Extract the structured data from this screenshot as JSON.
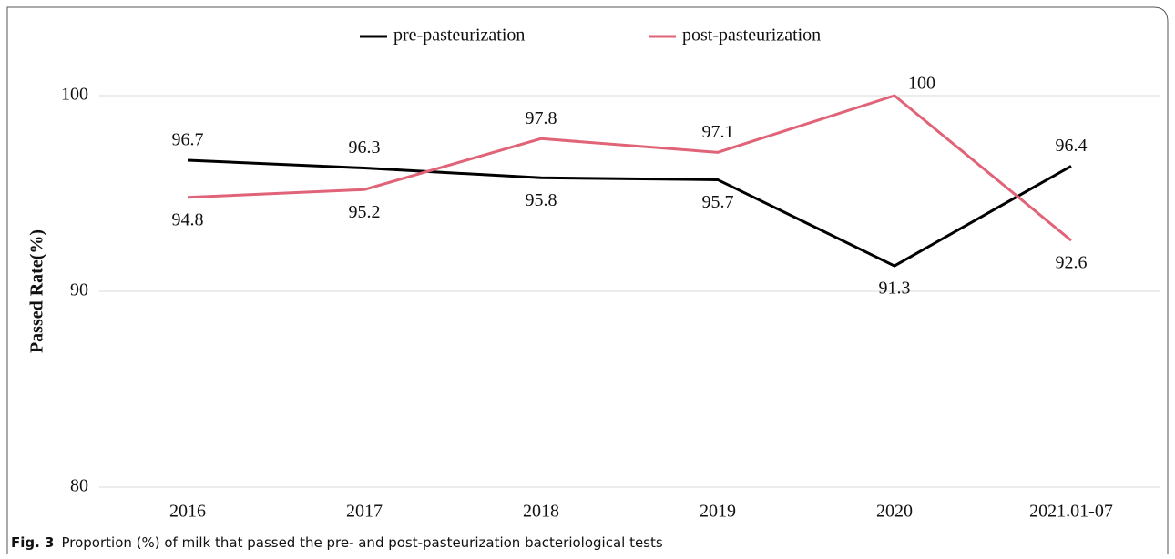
{
  "chart_data": {
    "type": "line",
    "y_label": "Passed Rate(%)",
    "categories": [
      "2016",
      "2017",
      "2018",
      "2019",
      "2020",
      "2021.01-07"
    ],
    "series": [
      {
        "name": "pre-pasteurization",
        "color": "#000000",
        "values": [
          96.7,
          96.3,
          95.8,
          95.7,
          91.3,
          96.4
        ]
      },
      {
        "name": "post-pasteurization",
        "color": "#e06377",
        "values": [
          94.8,
          95.2,
          97.8,
          97.1,
          100,
          92.6
        ]
      }
    ],
    "ylim": [
      80,
      100
    ],
    "yticks": [
      80,
      90,
      100
    ],
    "grid": true,
    "legend": "top",
    "caption": {
      "label": "Fig. 3",
      "text": "Proportion (%) of milk that passed the pre- and post-pasteurization bacteriological tests"
    }
  }
}
